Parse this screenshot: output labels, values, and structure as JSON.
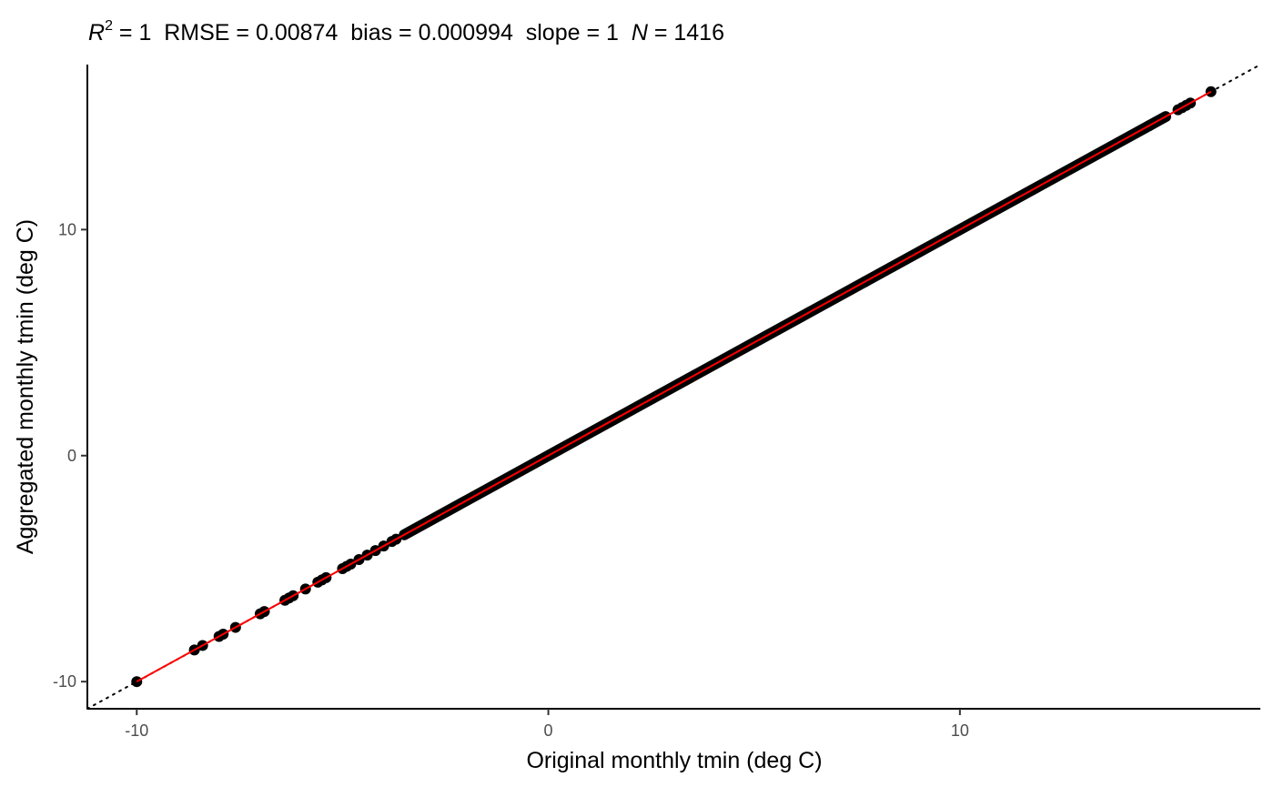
{
  "chart_data": {
    "type": "scatter",
    "title": {
      "r_symbol": "R",
      "r_exponent": "2",
      "r_value": " = 1  RMSE = 0.00874  bias = 0.000994  slope = 1  ",
      "n_symbol": "N",
      "n_value": " = 1416"
    },
    "xlabel": "Original monthly tmin (deg C)",
    "ylabel": "Aggregated monthly tmin (deg C)",
    "xlim": [
      -11.2,
      17.3
    ],
    "ylim": [
      -11.2,
      17.3
    ],
    "x_ticks": [
      -10,
      0,
      10
    ],
    "y_ticks": [
      -10,
      0,
      10
    ],
    "x_tick_labels": [
      "-10",
      "0",
      "10"
    ],
    "y_tick_labels": [
      "-10",
      "0",
      "10"
    ],
    "grid": false,
    "reference_line": {
      "style": "dotted",
      "color": "#000000",
      "slope": 1,
      "intercept": 0
    },
    "fit_line": {
      "color": "#ff0000",
      "slope": 1,
      "intercept": 0.001,
      "x_range": [
        -10,
        16.1
      ]
    },
    "point_color": "#000000",
    "points_dense_range": [
      -3.5,
      15.0
    ],
    "points": [
      [
        -10.0,
        -10.0
      ],
      [
        -8.6,
        -8.6
      ],
      [
        -8.4,
        -8.4
      ],
      [
        -8.0,
        -8.0
      ],
      [
        -7.9,
        -7.9
      ],
      [
        -7.6,
        -7.6
      ],
      [
        -7.0,
        -7.0
      ],
      [
        -6.9,
        -6.9
      ],
      [
        -6.4,
        -6.4
      ],
      [
        -6.3,
        -6.3
      ],
      [
        -6.2,
        -6.2
      ],
      [
        -5.9,
        -5.9
      ],
      [
        -5.6,
        -5.6
      ],
      [
        -5.5,
        -5.5
      ],
      [
        -5.4,
        -5.4
      ],
      [
        -5.0,
        -5.0
      ],
      [
        -4.9,
        -4.9
      ],
      [
        -4.8,
        -4.8
      ],
      [
        -4.6,
        -4.6
      ],
      [
        -4.4,
        -4.4
      ],
      [
        -4.2,
        -4.2
      ],
      [
        -4.0,
        -4.0
      ],
      [
        -3.8,
        -3.8
      ],
      [
        -3.7,
        -3.7
      ],
      [
        7.7,
        7.7
      ],
      [
        14.6,
        14.6
      ],
      [
        15.3,
        15.3
      ],
      [
        15.4,
        15.4
      ],
      [
        15.5,
        15.5
      ],
      [
        15.6,
        15.6
      ],
      [
        16.1,
        16.1
      ]
    ]
  }
}
